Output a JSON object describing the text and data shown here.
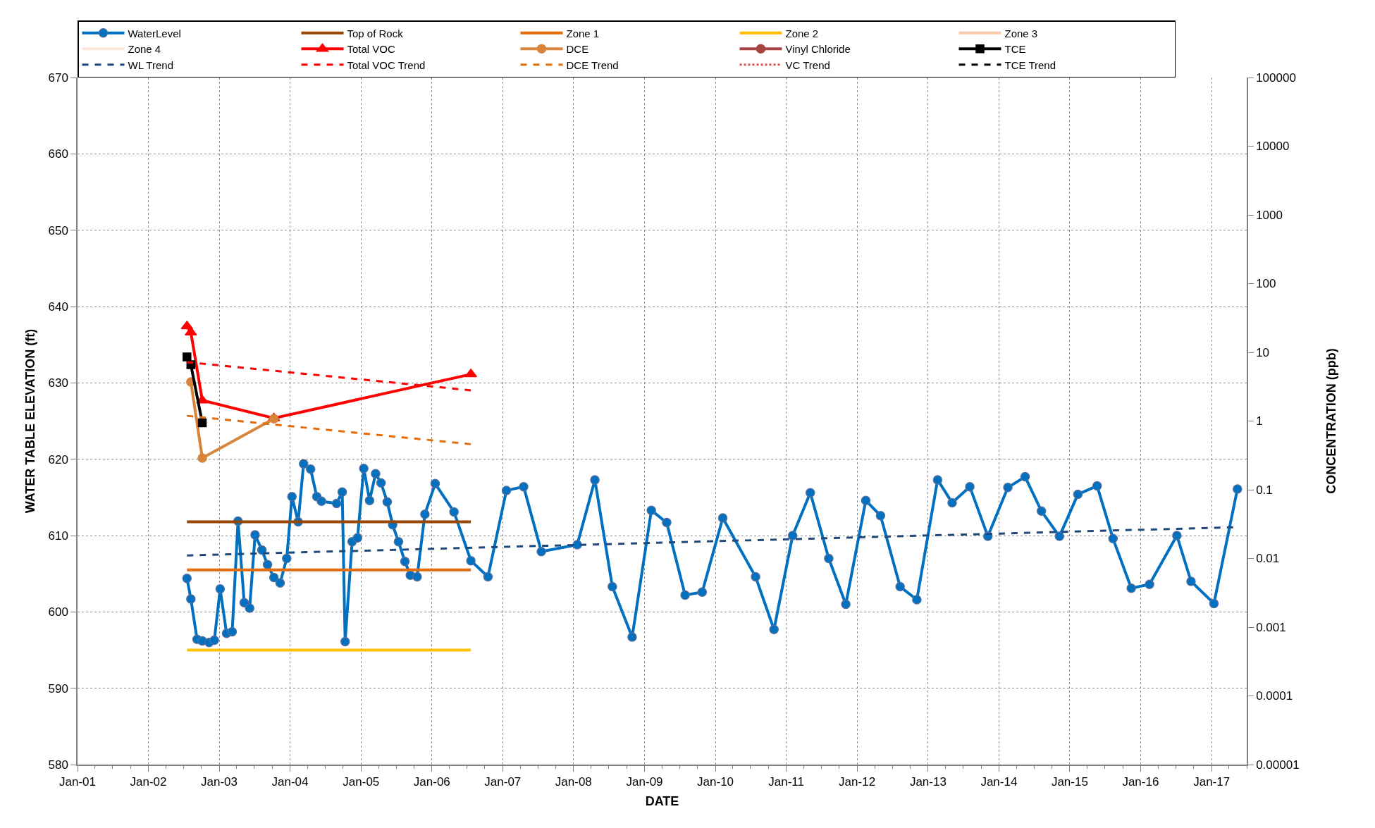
{
  "chart_data": {
    "type": "line",
    "xlabel": "DATE",
    "ylabel": "WATER TABLE ELEVATION (ft)",
    "y2label": "CONCENTRATION (ppb)",
    "xlim": [
      "2001-01-01",
      "2017-07-01"
    ],
    "xticks": [
      {
        "value": "2001-01-01",
        "label": "Jan-01"
      },
      {
        "value": "2002-01-01",
        "label": "Jan-02"
      },
      {
        "value": "2003-01-01",
        "label": "Jan-03"
      },
      {
        "value": "2004-01-01",
        "label": "Jan-04"
      },
      {
        "value": "2005-01-01",
        "label": "Jan-05"
      },
      {
        "value": "2006-01-01",
        "label": "Jan-06"
      },
      {
        "value": "2007-01-01",
        "label": "Jan-07"
      },
      {
        "value": "2008-01-01",
        "label": "Jan-08"
      },
      {
        "value": "2009-01-01",
        "label": "Jan-09"
      },
      {
        "value": "2010-01-01",
        "label": "Jan-10"
      },
      {
        "value": "2011-01-01",
        "label": "Jan-11"
      },
      {
        "value": "2012-01-01",
        "label": "Jan-12"
      },
      {
        "value": "2013-01-01",
        "label": "Jan-13"
      },
      {
        "value": "2014-01-01",
        "label": "Jan-14"
      },
      {
        "value": "2015-01-01",
        "label": "Jan-15"
      },
      {
        "value": "2016-01-01",
        "label": "Jan-16"
      },
      {
        "value": "2017-01-01",
        "label": "Jan-17"
      }
    ],
    "ylim": [
      580,
      670
    ],
    "yticks": [
      580,
      590,
      600,
      610,
      620,
      630,
      640,
      650,
      660,
      670
    ],
    "y2lim": [
      1e-05,
      100000
    ],
    "y2ticks": [
      {
        "value": 1e-05,
        "label": "0.00001"
      },
      {
        "value": 0.0001,
        "label": "0.0001"
      },
      {
        "value": 0.001,
        "label": "0.001"
      },
      {
        "value": 0.01,
        "label": "0.01"
      },
      {
        "value": 0.1,
        "label": "0.1"
      },
      1,
      10,
      100,
      1000,
      10000,
      100000
    ],
    "log": "y2",
    "grid": true,
    "legend": "top",
    "series": [
      {
        "name": "WaterLevel",
        "color": "#0070c0",
        "marker": "circle",
        "line_style": "solid",
        "x": [
          "2002-07-19",
          "2002-08-08",
          "2002-09-09",
          "2002-10-06",
          "2002-11-10",
          "2002-12-07",
          "2003-01-06",
          "2003-02-08",
          "2003-03-09",
          "2003-04-08",
          "2003-05-10",
          "2003-06-07",
          "2003-07-05",
          "2003-08-09",
          "2003-09-07",
          "2003-10-10",
          "2003-11-11",
          "2003-12-15",
          "2004-01-11",
          "2004-02-12",
          "2004-03-11",
          "2004-04-16",
          "2004-05-18",
          "2004-06-11",
          "2004-08-28",
          "2004-09-26",
          "2004-10-11",
          "2004-11-16",
          "2004-12-14",
          "2005-01-15",
          "2005-02-14",
          "2005-03-17",
          "2005-04-14",
          "2005-05-16",
          "2005-06-13",
          "2005-07-13",
          "2005-08-15",
          "2005-09-12",
          "2005-10-17",
          "2005-11-26",
          "2006-01-18",
          "2006-04-25",
          "2006-07-21",
          "2006-10-17",
          "2007-01-20",
          "2007-04-19",
          "2007-07-19",
          "2008-01-20",
          "2008-04-20",
          "2008-07-19",
          "2008-10-29",
          "2009-02-05",
          "2009-04-25",
          "2009-07-29",
          "2009-10-25",
          "2010-02-08",
          "2010-07-27",
          "2010-10-30",
          "2011-02-03",
          "2011-05-05",
          "2011-08-08",
          "2011-11-04",
          "2012-02-15",
          "2012-05-01",
          "2012-08-10",
          "2012-11-04",
          "2013-02-19",
          "2013-05-05",
          "2013-08-04",
          "2013-11-05",
          "2014-02-16",
          "2014-05-16",
          "2014-08-08",
          "2014-11-09",
          "2015-02-12",
          "2015-05-22",
          "2015-08-12",
          "2015-11-14",
          "2016-02-16",
          "2016-07-06",
          "2016-09-17",
          "2017-01-13",
          "2017-05-14"
        ],
        "values": [
          604.4,
          601.7,
          596.4,
          596.2,
          596.0,
          596.3,
          603.0,
          597.2,
          597.4,
          611.9,
          601.2,
          600.5,
          610.1,
          608.1,
          606.2,
          604.5,
          603.8,
          607.0,
          615.1,
          611.8,
          619.4,
          618.7,
          615.1,
          614.5,
          614.2,
          615.7,
          596.1,
          609.2,
          609.7,
          618.8,
          614.6,
          618.1,
          616.9,
          614.4,
          611.4,
          609.2,
          606.6,
          604.8,
          604.6,
          612.8,
          616.8,
          613.1,
          606.7,
          604.6,
          615.9,
          616.4,
          607.9,
          608.8,
          617.3,
          603.3,
          596.7,
          613.3,
          611.7,
          602.2,
          602.6,
          612.3,
          604.6,
          597.7,
          610.0,
          615.6,
          607.0,
          601.0,
          614.6,
          612.6,
          603.3,
          601.6,
          617.3,
          614.3,
          616.4,
          609.9,
          616.3,
          617.7,
          613.2,
          609.9,
          615.4,
          616.5,
          609.6,
          603.1,
          603.6,
          610.0,
          604.0,
          601.1,
          616.1
        ]
      },
      {
        "name": "Top of Rock",
        "color": "#974706",
        "marker": "none",
        "line_style": "solid",
        "x": [
          "2002-07-19",
          "2006-07-21"
        ],
        "values": [
          611.8,
          611.8
        ]
      },
      {
        "name": "Zone 1",
        "color": "#e46c0a",
        "marker": "none",
        "line_style": "solid",
        "x": [
          "2002-07-19",
          "2006-07-21"
        ],
        "values": [
          605.5,
          605.5
        ]
      },
      {
        "name": "Zone 2",
        "color": "#ffc000",
        "marker": "none",
        "line_style": "solid",
        "x": [
          "2002-07-19",
          "2006-07-21"
        ],
        "values": [
          595.0,
          595.0
        ]
      },
      {
        "name": "Zone 3",
        "color": "#f8cbad",
        "marker": "none",
        "line_style": "solid"
      },
      {
        "name": "Zone 4",
        "color": "#fbe5d6",
        "marker": "none",
        "line_style": "solid"
      },
      {
        "name": "Total VOC",
        "color": "#ff0000",
        "marker": "triangle",
        "line_style": "solid",
        "axis": "y2",
        "x": [
          "2002-07-19",
          "2002-08-08",
          "2002-10-06",
          "2003-10-10",
          "2006-07-21"
        ],
        "values": [
          24,
          19.5,
          2.0,
          1.1,
          4.8
        ]
      },
      {
        "name": "DCE",
        "color": "#d8843a",
        "marker": "circle",
        "line_style": "solid",
        "axis": "y2",
        "x": [
          "2002-08-08",
          "2002-10-06",
          "2003-10-10"
        ],
        "values": [
          3.7,
          0.29,
          1.08
        ]
      },
      {
        "name": "Vinyl Chloride",
        "color": "#a94442",
        "marker": "circle",
        "line_style": "solid",
        "axis": "y2"
      },
      {
        "name": "TCE",
        "color": "#000000",
        "marker": "square",
        "line_style": "solid",
        "axis": "y2",
        "x": [
          "2002-07-19",
          "2002-08-08",
          "2002-10-06"
        ],
        "values": [
          8.6,
          6.6,
          0.94
        ]
      },
      {
        "name": "WL Trend",
        "color": "#1f497d",
        "marker": "none",
        "line_style": "dashed",
        "x": [
          "2002-07-19",
          "2017-05-14"
        ],
        "values": [
          607.4,
          611.1
        ]
      },
      {
        "name": "Total VOC Trend",
        "color": "#ff0000",
        "marker": "none",
        "line_style": "dashed",
        "axis": "y2",
        "x": [
          "2002-07-19",
          "2006-07-21"
        ],
        "values": [
          7.2,
          2.8
        ]
      },
      {
        "name": "DCE Trend",
        "color": "#e46c0a",
        "marker": "none",
        "line_style": "dashed",
        "axis": "y2",
        "x": [
          "2002-07-19",
          "2006-07-21"
        ],
        "values": [
          1.19,
          0.46
        ]
      },
      {
        "name": "VC Trend",
        "color": "#d9534f",
        "marker": "none",
        "line_style": "dotted",
        "axis": "y2"
      },
      {
        "name": "TCE Trend",
        "color": "#000000",
        "marker": "none",
        "line_style": "dashed",
        "axis": "y2"
      }
    ]
  }
}
